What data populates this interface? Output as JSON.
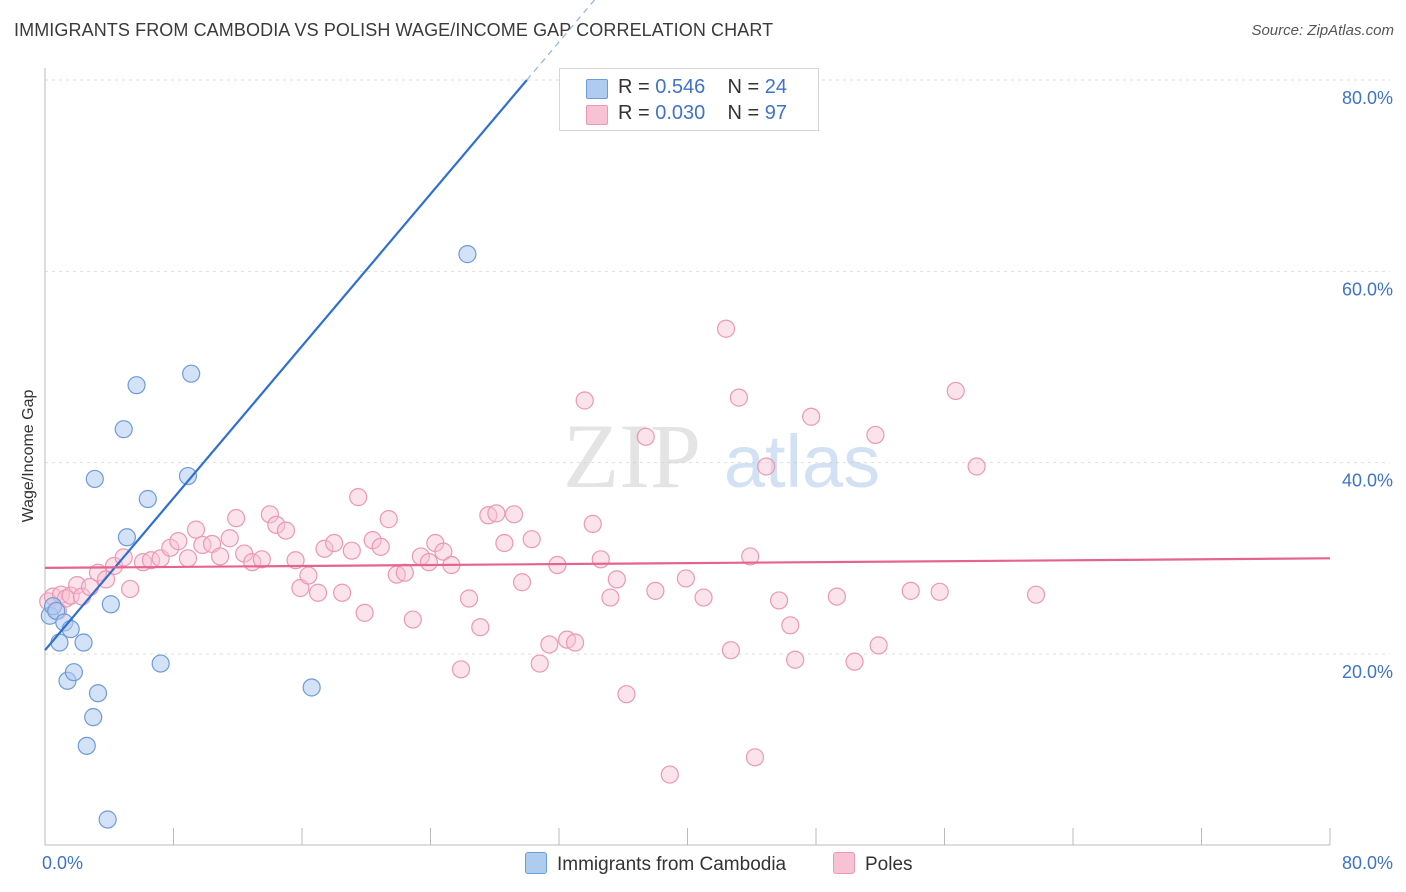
{
  "title": "IMMIGRANTS FROM CAMBODIA VS POLISH WAGE/INCOME GAP CORRELATION CHART",
  "source": "Source: ZipAtlas.com",
  "watermark": {
    "part1": "ZIP",
    "part2": "atlas"
  },
  "legend_stats": [
    {
      "r_label": "R =",
      "r_value": "0.546",
      "n_label": "N =",
      "n_value": "24"
    },
    {
      "r_label": "R =",
      "r_value": "0.030",
      "n_label": "N =",
      "n_value": "97"
    }
  ],
  "bottom_legend": [
    "Immigrants from Cambodia",
    "Poles"
  ],
  "chart_data": {
    "type": "scatter",
    "title": "IMMIGRANTS FROM CAMBODIA VS POLISH WAGE/INCOME GAP CORRELATION CHART",
    "xlabel": "",
    "ylabel": "Wage/Income Gap",
    "xlim": [
      0,
      80
    ],
    "ylim": [
      0,
      82
    ],
    "x_tick_labels": [
      "0.0%",
      "80.0%"
    ],
    "y_ticks": [
      20,
      40,
      60,
      80
    ],
    "y_tick_labels": [
      "20.0%",
      "40.0%",
      "60.0%",
      "80.0%"
    ],
    "grid": "horizontal dashed",
    "colors": {
      "cambodia_fill": "#aecbf0",
      "cambodia_stroke": "#6f9bd6",
      "cambodia_line": "#2f6fd0",
      "poles_fill": "#f7c2d4",
      "poles_stroke": "#ec98b3",
      "poles_line": "#e5648f",
      "axis_label": "#3f73c8"
    },
    "series": [
      {
        "name": "Immigrants from Cambodia",
        "points": [
          [
            0.3,
            24.0
          ],
          [
            0.5,
            25.0
          ],
          [
            0.7,
            24.5
          ],
          [
            0.9,
            21.2
          ],
          [
            1.2,
            23.3
          ],
          [
            1.4,
            17.2
          ],
          [
            1.6,
            22.6
          ],
          [
            1.8,
            18.1
          ],
          [
            2.4,
            21.2
          ],
          [
            2.6,
            10.4
          ],
          [
            3.0,
            13.4
          ],
          [
            3.1,
            38.3
          ],
          [
            3.3,
            15.9
          ],
          [
            3.9,
            2.7
          ],
          [
            4.1,
            25.2
          ],
          [
            4.9,
            43.5
          ],
          [
            5.1,
            32.2
          ],
          [
            5.7,
            48.1
          ],
          [
            6.4,
            36.2
          ],
          [
            7.2,
            19.0
          ],
          [
            8.9,
            38.6
          ],
          [
            9.1,
            49.3
          ],
          [
            16.6,
            16.5
          ],
          [
            26.3,
            61.8
          ]
        ],
        "trend": {
          "x": [
            0,
            30
          ],
          "y": [
            20.4,
            80.0
          ],
          "solid_until_x": 30.0
        }
      },
      {
        "name": "Poles",
        "points": [
          [
            0.2,
            25.5
          ],
          [
            0.5,
            26.0
          ],
          [
            0.8,
            24.5
          ],
          [
            1.0,
            26.2
          ],
          [
            1.3,
            25.8
          ],
          [
            1.6,
            26.1
          ],
          [
            2.0,
            27.2
          ],
          [
            2.3,
            26.0
          ],
          [
            2.8,
            27.0
          ],
          [
            3.3,
            28.5
          ],
          [
            3.8,
            27.8
          ],
          [
            4.3,
            29.2
          ],
          [
            4.9,
            30.1
          ],
          [
            5.3,
            26.8
          ],
          [
            6.1,
            29.6
          ],
          [
            6.6,
            29.8
          ],
          [
            7.2,
            30.0
          ],
          [
            7.8,
            31.1
          ],
          [
            8.3,
            31.8
          ],
          [
            8.9,
            30.0
          ],
          [
            9.4,
            33.0
          ],
          [
            9.8,
            31.4
          ],
          [
            10.4,
            31.5
          ],
          [
            10.9,
            30.2
          ],
          [
            11.5,
            32.1
          ],
          [
            11.9,
            34.2
          ],
          [
            12.4,
            30.5
          ],
          [
            12.9,
            29.6
          ],
          [
            13.5,
            29.9
          ],
          [
            14.0,
            34.6
          ],
          [
            14.4,
            33.5
          ],
          [
            15.0,
            32.9
          ],
          [
            15.6,
            29.8
          ],
          [
            15.9,
            26.9
          ],
          [
            16.4,
            28.2
          ],
          [
            17.0,
            26.4
          ],
          [
            17.4,
            31.0
          ],
          [
            18.0,
            31.6
          ],
          [
            18.5,
            26.4
          ],
          [
            19.1,
            30.8
          ],
          [
            19.5,
            36.4
          ],
          [
            19.9,
            24.3
          ],
          [
            20.4,
            31.9
          ],
          [
            20.9,
            31.2
          ],
          [
            21.4,
            34.1
          ],
          [
            21.9,
            28.3
          ],
          [
            22.4,
            28.5
          ],
          [
            22.9,
            23.6
          ],
          [
            23.4,
            30.2
          ],
          [
            23.9,
            29.6
          ],
          [
            24.3,
            31.6
          ],
          [
            24.8,
            30.7
          ],
          [
            25.3,
            29.3
          ],
          [
            25.9,
            18.4
          ],
          [
            26.4,
            25.8
          ],
          [
            27.1,
            22.8
          ],
          [
            27.6,
            34.5
          ],
          [
            28.1,
            34.7
          ],
          [
            28.6,
            31.6
          ],
          [
            29.2,
            34.6
          ],
          [
            29.7,
            27.5
          ],
          [
            30.3,
            32.0
          ],
          [
            30.8,
            19.0
          ],
          [
            31.4,
            21.0
          ],
          [
            31.9,
            29.3
          ],
          [
            32.5,
            21.5
          ],
          [
            33.0,
            21.2
          ],
          [
            33.6,
            46.5
          ],
          [
            34.1,
            33.6
          ],
          [
            34.6,
            29.9
          ],
          [
            35.2,
            25.9
          ],
          [
            35.6,
            27.8
          ],
          [
            36.2,
            15.8
          ],
          [
            37.4,
            42.7
          ],
          [
            38.0,
            26.6
          ],
          [
            38.9,
            7.4
          ],
          [
            39.9,
            27.9
          ],
          [
            41.0,
            25.9
          ],
          [
            42.4,
            54.0
          ],
          [
            42.7,
            20.4
          ],
          [
            43.2,
            46.8
          ],
          [
            43.9,
            30.2
          ],
          [
            44.2,
            9.2
          ],
          [
            44.9,
            39.6
          ],
          [
            45.7,
            25.6
          ],
          [
            46.4,
            23.0
          ],
          [
            46.7,
            19.4
          ],
          [
            47.7,
            44.8
          ],
          [
            49.3,
            26.0
          ],
          [
            50.4,
            19.2
          ],
          [
            51.7,
            42.9
          ],
          [
            51.9,
            20.9
          ],
          [
            53.9,
            26.6
          ],
          [
            55.7,
            26.5
          ],
          [
            56.7,
            47.5
          ],
          [
            58.0,
            39.6
          ],
          [
            61.7,
            26.2
          ]
        ],
        "trend": {
          "x": [
            0,
            80
          ],
          "y": [
            29.0,
            30.0
          ]
        }
      }
    ]
  }
}
